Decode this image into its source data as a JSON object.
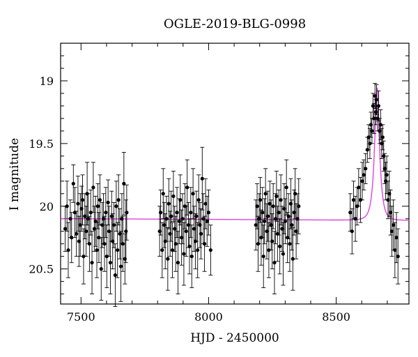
{
  "chart_data": {
    "type": "scatter",
    "title": "OGLE-2019-BLG-0998",
    "xlabel": "HJD - 2450000",
    "ylabel": "I magnitude",
    "xlim": [
      7420,
      8785
    ],
    "ylim": [
      20.78,
      18.7
    ],
    "y_inverted": true,
    "xticks": [
      7500,
      8000,
      8500
    ],
    "yticks": [
      19,
      19.5,
      20,
      20.5
    ],
    "xtick_labels": [
      "7500",
      "8000",
      "8500"
    ],
    "ytick_labels": [
      "19",
      "19.5",
      "20",
      "20.5"
    ],
    "grid": false,
    "legend": "none",
    "colors": {
      "points": "#000000",
      "model": "#e040e0"
    },
    "model": {
      "baseline": 20.1,
      "slope_per_day": 1e-05,
      "t0": 8660,
      "tE": 18,
      "u0": 0.4
    },
    "series": [
      {
        "marker": "dot-with-errorbar",
        "points": [
          [
            7438,
            20.18,
            0.18
          ],
          [
            7445,
            20.0,
            0.2
          ],
          [
            7450,
            20.35,
            0.22
          ],
          [
            7458,
            20.1,
            0.15
          ],
          [
            7463,
            20.25,
            0.2
          ],
          [
            7470,
            19.82,
            0.15
          ],
          [
            7476,
            20.05,
            0.2
          ],
          [
            7482,
            20.22,
            0.18
          ],
          [
            7488,
            19.98,
            0.22
          ],
          [
            7492,
            20.28,
            0.2
          ],
          [
            7497,
            20.15,
            0.25
          ],
          [
            7502,
            20.02,
            0.18
          ],
          [
            7506,
            19.95,
            0.2
          ],
          [
            7510,
            20.4,
            0.22
          ],
          [
            7515,
            20.08,
            0.18
          ],
          [
            7520,
            20.2,
            0.2
          ],
          [
            7524,
            19.9,
            0.25
          ],
          [
            7528,
            20.1,
            0.2
          ],
          [
            7533,
            20.3,
            0.22
          ],
          [
            7538,
            20.05,
            0.18
          ],
          [
            7543,
            20.45,
            0.25
          ],
          [
            7548,
            19.85,
            0.2
          ],
          [
            7552,
            20.18,
            0.18
          ],
          [
            7557,
            20.12,
            0.2
          ],
          [
            7562,
            20.35,
            0.22
          ],
          [
            7566,
            20.0,
            0.18
          ],
          [
            7570,
            20.25,
            0.2
          ],
          [
            7574,
            19.95,
            0.2
          ],
          [
            7579,
            20.5,
            0.25
          ],
          [
            7583,
            20.15,
            0.18
          ],
          [
            7588,
            20.1,
            0.2
          ],
          [
            7592,
            20.3,
            0.22
          ],
          [
            7597,
            20.05,
            0.2
          ],
          [
            7601,
            20.4,
            0.25
          ],
          [
            7606,
            19.97,
            0.18
          ],
          [
            7610,
            20.2,
            0.2
          ],
          [
            7615,
            20.45,
            0.25
          ],
          [
            7620,
            20.08,
            0.2
          ],
          [
            7624,
            20.28,
            0.22
          ],
          [
            7629,
            20.15,
            0.18
          ],
          [
            7634,
            20.55,
            0.25
          ],
          [
            7638,
            20.0,
            0.2
          ],
          [
            7643,
            20.35,
            0.22
          ],
          [
            7647,
            19.95,
            0.2
          ],
          [
            7652,
            20.22,
            0.2
          ],
          [
            7656,
            20.48,
            0.28
          ],
          [
            7660,
            20.1,
            0.2
          ],
          [
            7664,
            20.3,
            0.22
          ],
          [
            7668,
            19.82,
            0.25
          ],
          [
            7672,
            20.42,
            0.2
          ],
          [
            7676,
            20.2,
            0.25
          ],
          [
            7679,
            20.05,
            0.22
          ],
          [
            7808,
            20.2,
            0.2
          ],
          [
            7812,
            20.05,
            0.18
          ],
          [
            7818,
            20.35,
            0.22
          ],
          [
            7822,
            19.9,
            0.2
          ],
          [
            7826,
            20.15,
            0.18
          ],
          [
            7830,
            20.28,
            0.22
          ],
          [
            7835,
            20.1,
            0.18
          ],
          [
            7840,
            20.42,
            0.25
          ],
          [
            7844,
            19.98,
            0.2
          ],
          [
            7849,
            20.22,
            0.18
          ],
          [
            7853,
            20.08,
            0.2
          ],
          [
            7858,
            20.35,
            0.22
          ],
          [
            7862,
            19.92,
            0.2
          ],
          [
            7867,
            20.18,
            0.18
          ],
          [
            7871,
            20.3,
            0.22
          ],
          [
            7876,
            20.05,
            0.2
          ],
          [
            7880,
            20.45,
            0.25
          ],
          [
            7885,
            20.12,
            0.18
          ],
          [
            7889,
            19.95,
            0.2
          ],
          [
            7894,
            20.25,
            0.22
          ],
          [
            7898,
            20.1,
            0.2
          ],
          [
            7903,
            20.38,
            0.25
          ],
          [
            7907,
            20.0,
            0.18
          ],
          [
            7912,
            20.2,
            0.2
          ],
          [
            7916,
            19.85,
            0.22
          ],
          [
            7921,
            20.15,
            0.18
          ],
          [
            7925,
            20.32,
            0.22
          ],
          [
            7930,
            20.05,
            0.2
          ],
          [
            7934,
            20.4,
            0.25
          ],
          [
            7939,
            19.9,
            0.2
          ],
          [
            7943,
            20.18,
            0.18
          ],
          [
            7948,
            20.28,
            0.22
          ],
          [
            7952,
            20.08,
            0.2
          ],
          [
            7957,
            20.35,
            0.22
          ],
          [
            7961,
            19.95,
            0.2
          ],
          [
            7966,
            20.15,
            0.18
          ],
          [
            7970,
            20.22,
            0.2
          ],
          [
            7975,
            19.78,
            0.25
          ],
          [
            7979,
            20.1,
            0.2
          ],
          [
            7984,
            20.3,
            0.22
          ],
          [
            7988,
            19.98,
            0.2
          ],
          [
            7994,
            20.12,
            0.2
          ],
          [
            8000,
            20.05,
            0.18
          ],
          [
            8008,
            20.35,
            0.2
          ],
          [
            8185,
            20.15,
            0.2
          ],
          [
            8190,
            20.0,
            0.18
          ],
          [
            8194,
            20.3,
            0.22
          ],
          [
            8198,
            20.1,
            0.2
          ],
          [
            8202,
            19.95,
            0.18
          ],
          [
            8206,
            20.25,
            0.22
          ],
          [
            8211,
            20.05,
            0.2
          ],
          [
            8215,
            20.4,
            0.25
          ],
          [
            8219,
            20.12,
            0.18
          ],
          [
            8223,
            19.9,
            0.2
          ],
          [
            8228,
            20.2,
            0.22
          ],
          [
            8232,
            20.08,
            0.2
          ],
          [
            8236,
            20.35,
            0.22
          ],
          [
            8240,
            19.98,
            0.18
          ],
          [
            8245,
            20.15,
            0.2
          ],
          [
            8249,
            20.28,
            0.22
          ],
          [
            8253,
            20.0,
            0.18
          ],
          [
            8258,
            20.45,
            0.25
          ],
          [
            8262,
            20.1,
            0.2
          ],
          [
            8266,
            19.92,
            0.2
          ],
          [
            8270,
            20.22,
            0.22
          ],
          [
            8275,
            20.05,
            0.18
          ],
          [
            8279,
            20.32,
            0.22
          ],
          [
            8283,
            19.95,
            0.2
          ],
          [
            8288,
            20.18,
            0.18
          ],
          [
            8292,
            20.38,
            0.25
          ],
          [
            8296,
            20.02,
            0.2
          ],
          [
            8300,
            20.12,
            0.18
          ],
          [
            8305,
            19.85,
            0.22
          ],
          [
            8309,
            20.25,
            0.2
          ],
          [
            8313,
            20.08,
            0.18
          ],
          [
            8318,
            20.3,
            0.22
          ],
          [
            8322,
            19.98,
            0.2
          ],
          [
            8326,
            20.15,
            0.2
          ],
          [
            8330,
            20.42,
            0.25
          ],
          [
            8335,
            20.05,
            0.18
          ],
          [
            8339,
            19.9,
            0.2
          ],
          [
            8343,
            20.2,
            0.22
          ],
          [
            8348,
            20.1,
            0.2
          ],
          [
            8353,
            20.0,
            0.22
          ],
          [
            8555,
            20.05,
            0.15
          ],
          [
            8562,
            20.2,
            0.18
          ],
          [
            8568,
            19.95,
            0.15
          ],
          [
            8575,
            20.1,
            0.18
          ],
          [
            8582,
            20.0,
            0.15
          ],
          [
            8588,
            19.85,
            0.15
          ],
          [
            8595,
            19.95,
            0.18
          ],
          [
            8602,
            19.8,
            0.15
          ],
          [
            8608,
            19.75,
            0.12
          ],
          [
            8615,
            19.7,
            0.12
          ],
          [
            8622,
            19.55,
            0.1
          ],
          [
            8627,
            19.45,
            0.1
          ],
          [
            8632,
            19.5,
            0.12
          ],
          [
            8636,
            19.35,
            0.1
          ],
          [
            8640,
            19.4,
            0.1
          ],
          [
            8644,
            19.2,
            0.1
          ],
          [
            8648,
            19.3,
            0.12
          ],
          [
            8652,
            19.12,
            0.1
          ],
          [
            8655,
            19.25,
            0.1
          ],
          [
            8658,
            19.15,
            0.12
          ],
          [
            8662,
            19.3,
            0.1
          ],
          [
            8666,
            19.2,
            0.12
          ],
          [
            8670,
            19.4,
            0.1
          ],
          [
            8674,
            19.35,
            0.12
          ],
          [
            8678,
            19.5,
            0.12
          ],
          [
            8682,
            19.45,
            0.1
          ],
          [
            8686,
            19.6,
            0.12
          ],
          [
            8690,
            19.7,
            0.12
          ],
          [
            8694,
            19.8,
            0.15
          ],
          [
            8698,
            19.75,
            0.15
          ],
          [
            8703,
            19.95,
            0.15
          ],
          [
            8708,
            19.9,
            0.18
          ],
          [
            8713,
            20.05,
            0.18
          ],
          [
            8718,
            20.2,
            0.2
          ],
          [
            8724,
            20.15,
            0.2
          ],
          [
            8730,
            20.35,
            0.22
          ],
          [
            8736,
            20.25,
            0.2
          ],
          [
            8742,
            20.4,
            0.22
          ]
        ]
      }
    ]
  }
}
